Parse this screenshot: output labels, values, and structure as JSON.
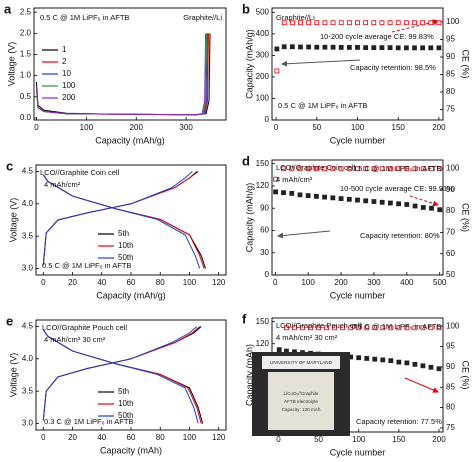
{
  "chart_data": [
    {
      "panel": "a",
      "type": "line",
      "x_label": "Capacity (mAh/g)",
      "y_label": "Voltage (V)",
      "xlim": [
        -5,
        380
      ],
      "xticks": [
        0,
        100,
        200,
        300
      ],
      "ylim": [
        -0.05,
        2.6
      ],
      "yticks": [
        {
          "value": 0,
          "label": "0.0"
        },
        {
          "value": 0.5,
          "label": "0.5"
        },
        {
          "value": 1,
          "label": "1.0"
        },
        {
          "value": 1.5,
          "label": "1.5"
        },
        {
          "value": 2,
          "label": "2.0"
        },
        {
          "value": 2.5,
          "label": "2.5"
        }
      ],
      "annotations": [
        "0.5 C @ 1M LiPF₆ in AFTB",
        "Graphite//Li"
      ],
      "series": [
        {
          "name": "1",
          "color": "#000000",
          "x": [
            0,
            3,
            15,
            60,
            150,
            250,
            320,
            340,
            346,
            348
          ],
          "values": [
            0.85,
            0.3,
            0.18,
            0.11,
            0.09,
            0.08,
            0.07,
            0.1,
            0.4,
            2.0
          ]
        },
        {
          "name": "2",
          "color": "#e8000b",
          "x": [
            0,
            3,
            15,
            60,
            150,
            250,
            320,
            338,
            343,
            345
          ],
          "values": [
            0.7,
            0.25,
            0.15,
            0.1,
            0.09,
            0.08,
            0.07,
            0.1,
            0.4,
            2.0
          ]
        },
        {
          "name": "10",
          "color": "#1f3fd0",
          "x": [
            0,
            3,
            15,
            60,
            150,
            250,
            318,
            336,
            341,
            343
          ],
          "values": [
            0.7,
            0.24,
            0.15,
            0.1,
            0.09,
            0.08,
            0.07,
            0.1,
            0.4,
            2.0
          ]
        },
        {
          "name": "100",
          "color": "#1a9a1a",
          "x": [
            0,
            3,
            15,
            60,
            150,
            250,
            316,
            334,
            339,
            341
          ],
          "values": [
            0.7,
            0.24,
            0.15,
            0.1,
            0.09,
            0.08,
            0.07,
            0.1,
            0.4,
            2.0
          ]
        },
        {
          "name": "200",
          "color": "#a020c0",
          "x": [
            0,
            3,
            15,
            60,
            150,
            250,
            314,
            332,
            337,
            339
          ],
          "values": [
            0.7,
            0.24,
            0.15,
            0.1,
            0.09,
            0.08,
            0.07,
            0.1,
            0.4,
            2.0
          ]
        }
      ]
    },
    {
      "panel": "b",
      "type": "scatter",
      "x_label": "Cycle number",
      "y_label": "Capacity (mAh/g)",
      "y2_label": "CE (%)",
      "xlim": [
        -5,
        205
      ],
      "xticks": [
        0,
        50,
        100,
        150,
        200
      ],
      "ylim": [
        0,
        520
      ],
      "yticks": [
        0,
        100,
        200,
        300,
        400,
        500
      ],
      "y2lim": [
        72,
        104
      ],
      "y2ticks": [
        75,
        80,
        85,
        90,
        95,
        100
      ],
      "annotations": [
        "Graphite//Li",
        "10-200 cycle average CE: 99.83%",
        "Capacity retention: 98.5%",
        "0.5 C @ 1M LiPF₆ in AFTB"
      ],
      "x": [
        1,
        10,
        20,
        30,
        40,
        50,
        60,
        70,
        80,
        90,
        100,
        110,
        120,
        130,
        140,
        150,
        160,
        170,
        180,
        190,
        200
      ],
      "series": [
        {
          "color": "#222222",
          "fill": true,
          "values": [
            330,
            340,
            340,
            339,
            339,
            338,
            338,
            338,
            337,
            337,
            337,
            336,
            336,
            336,
            336,
            335,
            335,
            335,
            335,
            335,
            335
          ]
        },
        {
          "color": "#e8000b",
          "fill": false,
          "axis": "y2",
          "values": [
            86,
            99.8,
            99.8,
            99.8,
            99.8,
            99.8,
            99.8,
            99.8,
            99.8,
            99.8,
            99.8,
            99.8,
            99.8,
            99.8,
            99.8,
            99.8,
            99.8,
            99.8,
            99.8,
            99.8,
            99.8
          ]
        }
      ]
    },
    {
      "panel": "c",
      "type": "line",
      "x_label": "Capacity (mAh/g)",
      "y_label": "Voltage (V)",
      "xlim": [
        -5,
        125
      ],
      "xticks": [
        0,
        20,
        40,
        60,
        80,
        100,
        120
      ],
      "ylim": [
        2.9,
        4.6
      ],
      "yticks": [
        {
          "value": 3,
          "label": "3.0"
        },
        3.5,
        {
          "value": 4,
          "label": "4.0"
        },
        4.5
      ],
      "annotations": [
        "LCO//Graphite  Coin cell",
        "4 mAh/cm²",
        "0.5 C @ 1M LiPF₆ in AFTB"
      ],
      "series": [
        {
          "name": "5th",
          "color": "#000000",
          "x": [
            0,
            2,
            10,
            30,
            60,
            90,
            100,
            106,
            null,
            0,
            3,
            20,
            50,
            80,
            100,
            108,
            111
          ],
          "values": [
            3.05,
            3.55,
            3.75,
            3.86,
            4.0,
            4.25,
            4.4,
            4.5,
            null,
            4.45,
            4.35,
            4.12,
            3.92,
            3.76,
            3.52,
            3.2,
            3.0
          ]
        },
        {
          "name": "10th",
          "color": "#e8000b",
          "x": [
            0,
            2,
            10,
            30,
            60,
            90,
            100,
            105,
            null,
            0,
            3,
            20,
            50,
            80,
            100,
            107,
            110
          ],
          "values": [
            3.05,
            3.55,
            3.75,
            3.86,
            4.0,
            4.25,
            4.4,
            4.5,
            null,
            4.45,
            4.35,
            4.12,
            3.92,
            3.76,
            3.52,
            3.2,
            3.0
          ]
        },
        {
          "name": "50th",
          "color": "#1f3fd0",
          "x": [
            0,
            2,
            10,
            30,
            60,
            88,
            97,
            102,
            null,
            0,
            3,
            20,
            50,
            78,
            97,
            104,
            107
          ],
          "values": [
            3.05,
            3.55,
            3.75,
            3.86,
            4.0,
            4.25,
            4.4,
            4.5,
            null,
            4.45,
            4.35,
            4.12,
            3.92,
            3.76,
            3.52,
            3.2,
            3.0
          ]
        }
      ]
    },
    {
      "panel": "d",
      "type": "scatter",
      "x_label": "Cycle number",
      "y_label": "Capacity (mAh/g)",
      "y2_label": "CE (%)",
      "xlim": [
        -10,
        510
      ],
      "xticks": [
        0,
        100,
        200,
        300,
        400,
        500
      ],
      "ylim": [
        0,
        155
      ],
      "yticks": [
        0,
        30,
        60,
        90,
        120,
        150
      ],
      "y2lim": [
        50,
        104
      ],
      "y2ticks": [
        50,
        60,
        70,
        80,
        90,
        100
      ],
      "annotations": [
        "LCO//Graphite  Coin cell",
        "4 mAh/cm²",
        "0.5 C @ 1M LiPF₆ in AFTB",
        "10-500 cycle average CE: 99.91%",
        "Capacity retention: 80%"
      ],
      "x": [
        1,
        25,
        50,
        75,
        100,
        125,
        150,
        175,
        200,
        225,
        250,
        275,
        300,
        325,
        350,
        375,
        400,
        425,
        450,
        475,
        500
      ],
      "series": [
        {
          "color": "#222222",
          "fill": true,
          "values": [
            112,
            111,
            110,
            108,
            107,
            106,
            105,
            104,
            103,
            102,
            101,
            100,
            99,
            98,
            97,
            96,
            95,
            93,
            91,
            90,
            88
          ]
        },
        {
          "color": "#e8000b",
          "fill": false,
          "axis": "y2",
          "values": [
            95,
            99.9,
            99.9,
            99.9,
            99.9,
            99.9,
            99.9,
            99.9,
            99.9,
            99.9,
            99.9,
            99.9,
            99.9,
            99.9,
            99.9,
            99.9,
            99.9,
            99.9,
            99.9,
            99.9,
            99.9
          ]
        }
      ]
    },
    {
      "panel": "e",
      "type": "line",
      "x_label": "Capacity (mAh)",
      "y_label": "Voltage (V)",
      "xlim": [
        -5,
        125
      ],
      "xticks": [
        0,
        20,
        40,
        60,
        80,
        100,
        120
      ],
      "ylim": [
        2.9,
        4.6
      ],
      "yticks": [
        {
          "value": 3,
          "label": "3.0"
        },
        3.5,
        {
          "value": 4,
          "label": "4.0"
        },
        4.5
      ],
      "annotations": [
        "LCO//Graphite  Pouch cell",
        "4 mAh/cm²  30 cm²",
        "0.3 C @ 1M LiPF₆ in AFTB"
      ],
      "series": [
        {
          "name": "5th",
          "color": "#000000",
          "x": [
            0,
            2,
            10,
            30,
            60,
            90,
            103,
            108,
            null,
            0,
            3,
            20,
            50,
            80,
            100,
            106,
            109
          ],
          "values": [
            3.05,
            3.5,
            3.72,
            3.85,
            4.0,
            4.25,
            4.4,
            4.5,
            null,
            4.45,
            4.35,
            4.12,
            3.92,
            3.76,
            3.55,
            3.25,
            3.0
          ]
        },
        {
          "name": "10th",
          "color": "#e8000b",
          "x": [
            0,
            2,
            10,
            30,
            60,
            90,
            102,
            107,
            null,
            0,
            3,
            20,
            50,
            80,
            99,
            105,
            108
          ],
          "values": [
            3.05,
            3.5,
            3.72,
            3.85,
            4.0,
            4.25,
            4.4,
            4.5,
            null,
            4.45,
            4.35,
            4.12,
            3.92,
            3.76,
            3.55,
            3.25,
            3.0
          ]
        },
        {
          "name": "50th",
          "color": "#1f3fd0",
          "x": [
            0,
            2,
            10,
            30,
            60,
            88,
            100,
            105,
            null,
            0,
            3,
            20,
            50,
            78,
            97,
            103,
            106
          ],
          "values": [
            3.05,
            3.5,
            3.72,
            3.85,
            4.0,
            4.25,
            4.4,
            4.5,
            null,
            4.45,
            4.35,
            4.12,
            3.92,
            3.76,
            3.55,
            3.25,
            3.0
          ]
        }
      ]
    },
    {
      "panel": "f",
      "type": "scatter",
      "x_label": "Cycle number",
      "y_label": "Capacity (mAh)",
      "y2_label": "CE (%)",
      "xlim": [
        -8,
        205
      ],
      "xticks": [
        0,
        50,
        100,
        150,
        200
      ],
      "ylim": [
        0,
        155
      ],
      "yticks": [
        0,
        30,
        60,
        90,
        120,
        150
      ],
      "y2lim": [
        74,
        102
      ],
      "y2ticks": [
        75,
        80,
        85,
        90,
        95,
        100
      ],
      "annotations": [
        "LCO//Graphite  Pouch cell",
        "4 mAh/cm²  30 cm²",
        "0.3 C @ 1M LiPF₆ in AFTB",
        "Capacity retention: 77.5%"
      ],
      "inset_text": [
        "UNIVERSITY OF MARYLAND",
        "LiCoO₂//Graphite",
        "AFTB electrolyte",
        "Capacity: 120 mAh"
      ],
      "x": [
        1,
        10,
        20,
        30,
        40,
        50,
        60,
        70,
        80,
        90,
        100,
        110,
        120,
        130,
        140,
        150,
        160,
        170,
        180,
        190,
        200
      ],
      "series": [
        {
          "color": "#222222",
          "fill": true,
          "values": [
            112,
            110,
            109,
            108,
            107,
            106,
            105,
            104,
            103,
            102,
            101,
            100,
            99,
            98,
            97,
            95,
            94,
            92,
            90,
            88,
            86
          ]
        },
        {
          "color": "#e8000b",
          "fill": false,
          "axis": "y2",
          "values": [
            88,
            99.6,
            99.6,
            99.6,
            99.6,
            99.6,
            99.6,
            99.6,
            99.6,
            99.6,
            99.6,
            99.6,
            99.6,
            99.6,
            99.6,
            99.6,
            99.6,
            99.6,
            99.6,
            99.6,
            99.6
          ]
        }
      ]
    }
  ]
}
